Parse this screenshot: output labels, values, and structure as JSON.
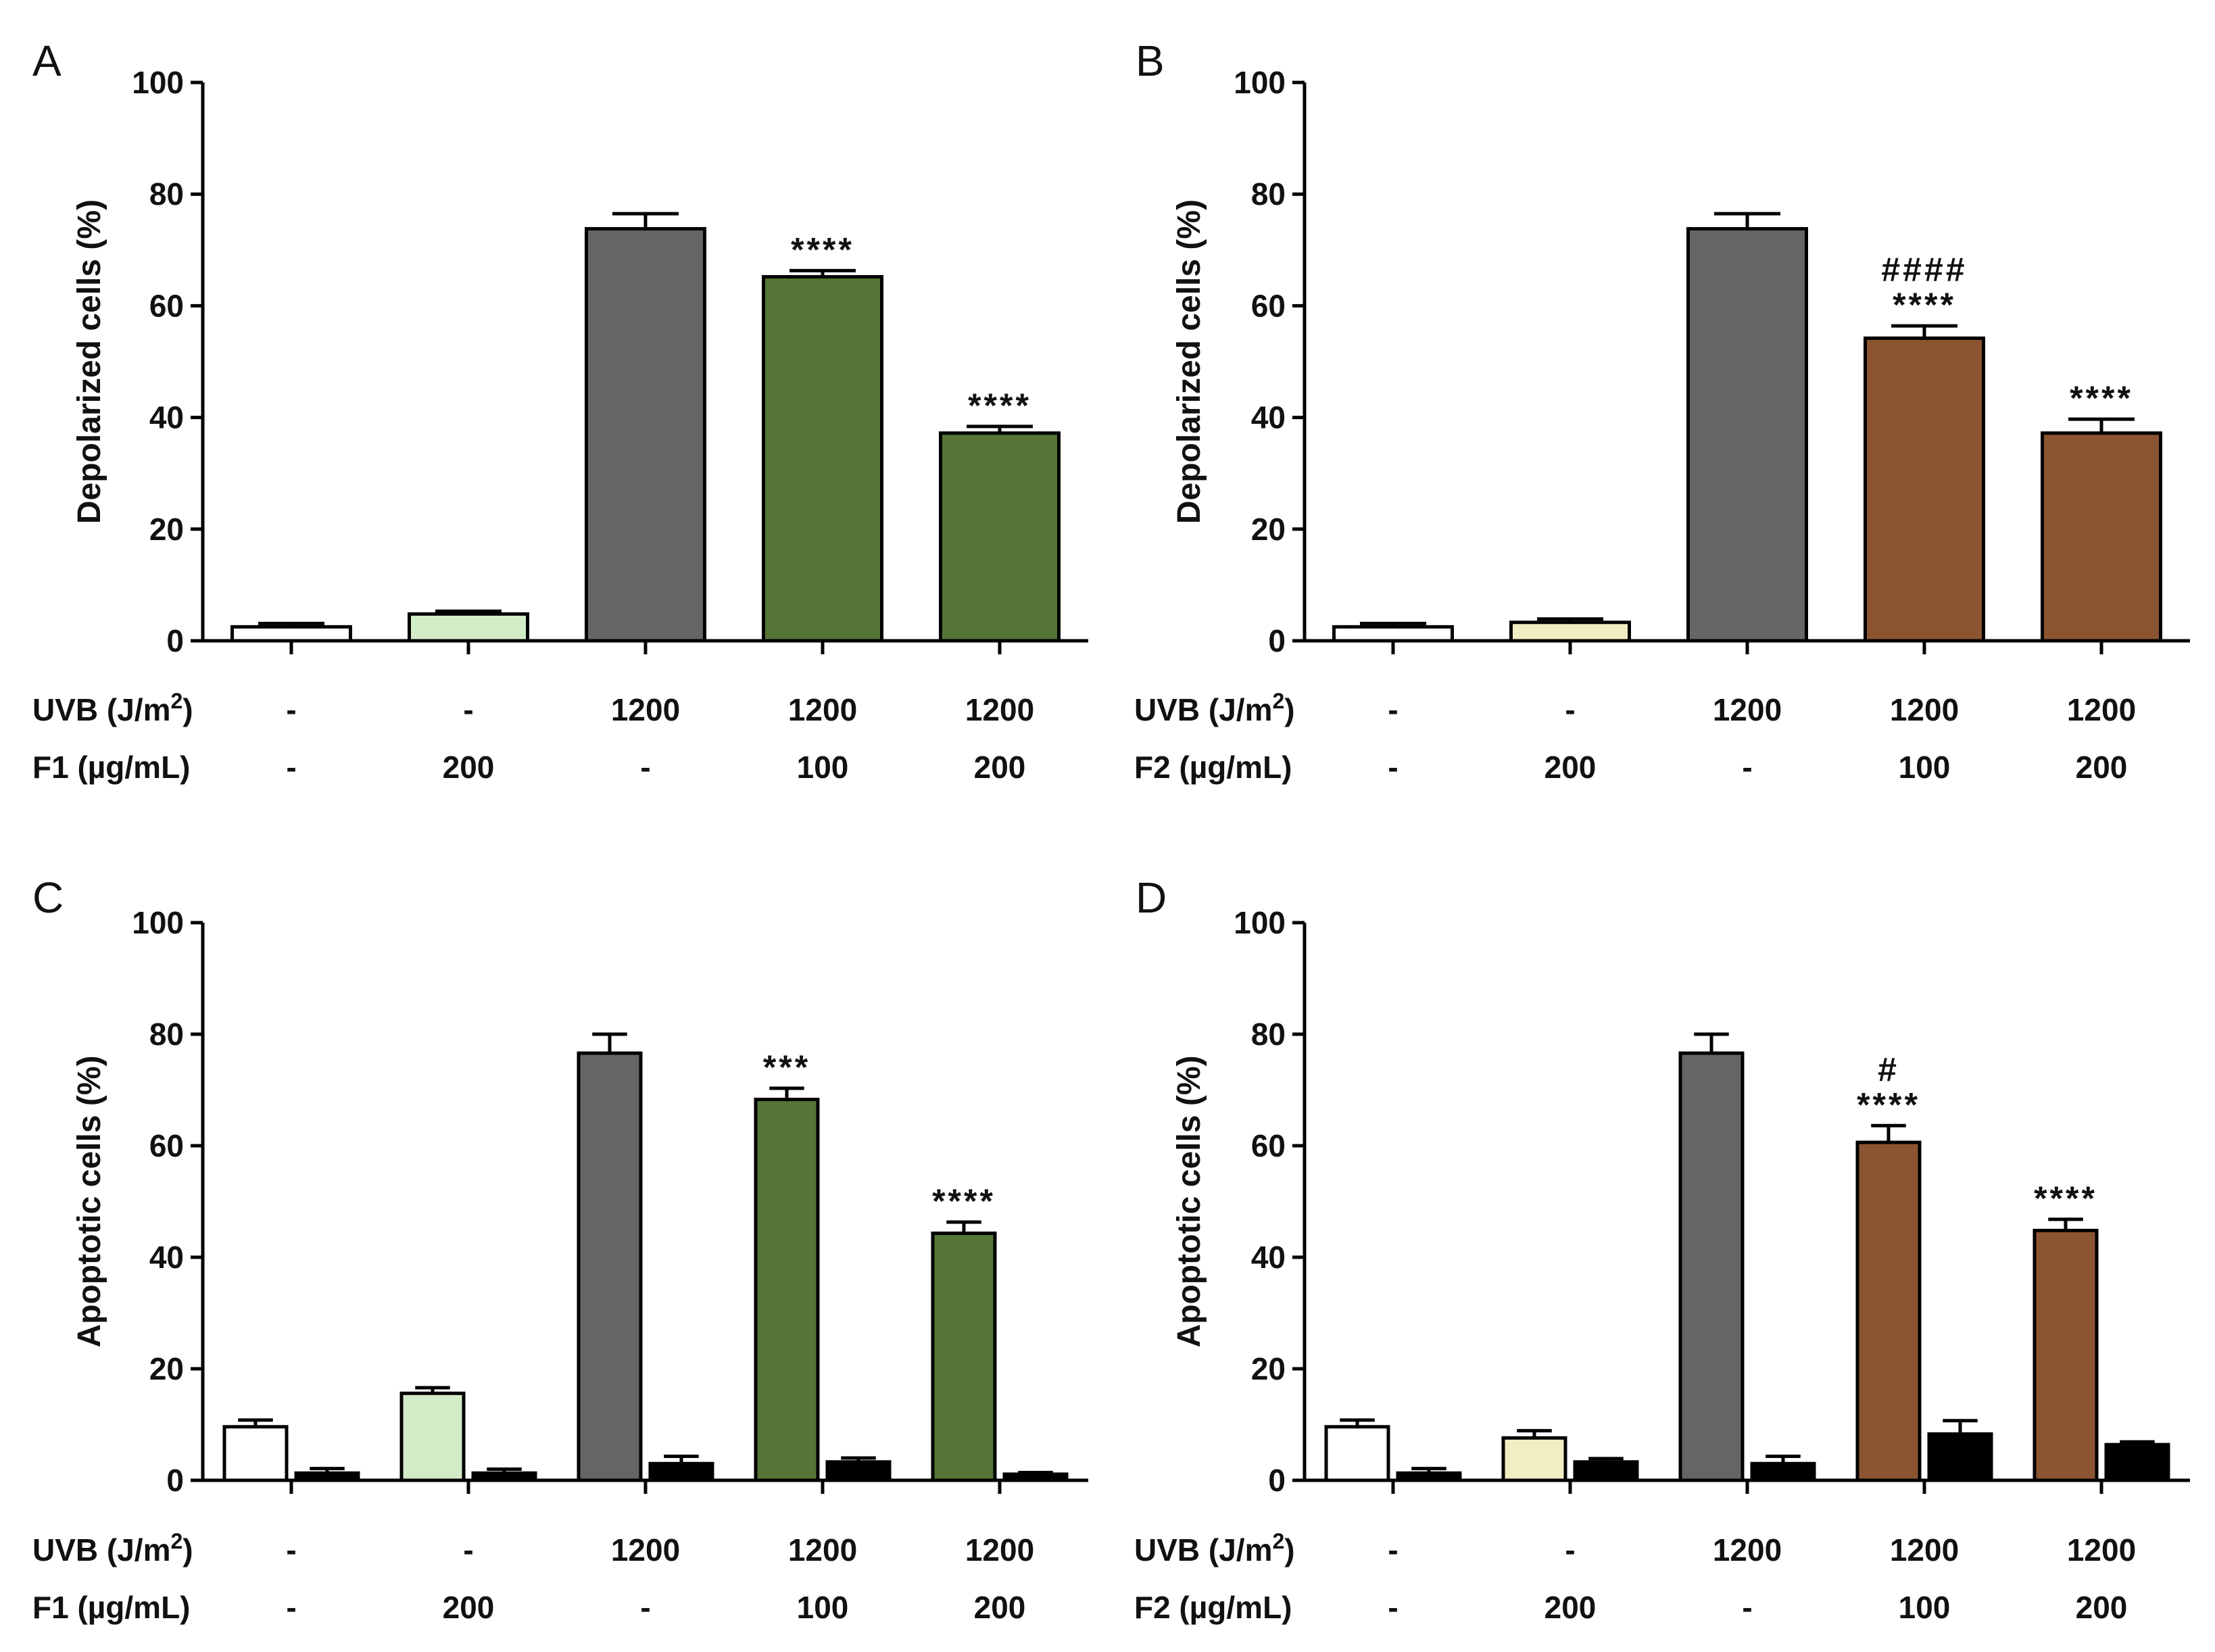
{
  "chart_data": [
    {
      "panel": "A",
      "type": "bar",
      "ylabel": "Depolarized cells (%)",
      "ylim": [
        0,
        100
      ],
      "yticks": [
        "0",
        "20",
        "40",
        "60",
        "80",
        "100"
      ],
      "groups": [
        {
          "uvb": "-",
          "extract": "-",
          "bars": [
            {
              "value": 2.5,
              "err": 0.6,
              "color": "#ffffff",
              "sig": []
            }
          ]
        },
        {
          "uvb": "-",
          "extract": "200",
          "bars": [
            {
              "value": 4.8,
              "err": 0.5,
              "color": "#d3ecc8",
              "sig": []
            }
          ]
        },
        {
          "uvb": "1200",
          "extract": "-",
          "bars": [
            {
              "value": 73.8,
              "err": 2.7,
              "color": "#656565",
              "sig": []
            }
          ]
        },
        {
          "uvb": "1200",
          "extract": "100",
          "bars": [
            {
              "value": 65.2,
              "err": 1.1,
              "color": "#557436",
              "sig": [
                "****"
              ]
            }
          ]
        },
        {
          "uvb": "1200",
          "extract": "200",
          "bars": [
            {
              "value": 37.2,
              "err": 1.2,
              "color": "#557436",
              "sig": [
                "****"
              ]
            }
          ]
        }
      ],
      "row_labels": {
        "uvb": "UVB (J/m",
        "uvb_sup": "2",
        "uvb_close": ")",
        "extract": "F1 (µg/mL)"
      }
    },
    {
      "panel": "B",
      "type": "bar",
      "ylabel": "Depolarized cells (%)",
      "ylim": [
        0,
        100
      ],
      "yticks": [
        "0",
        "20",
        "40",
        "60",
        "80",
        "100"
      ],
      "groups": [
        {
          "uvb": "-",
          "extract": "-",
          "bars": [
            {
              "value": 2.5,
              "err": 0.6,
              "color": "#ffffff",
              "sig": []
            }
          ]
        },
        {
          "uvb": "-",
          "extract": "200",
          "bars": [
            {
              "value": 3.3,
              "err": 0.6,
              "color": "#f2edc2",
              "sig": []
            }
          ]
        },
        {
          "uvb": "1200",
          "extract": "-",
          "bars": [
            {
              "value": 73.8,
              "err": 2.7,
              "color": "#656565",
              "sig": []
            }
          ]
        },
        {
          "uvb": "1200",
          "extract": "100",
          "bars": [
            {
              "value": 54.2,
              "err": 2.2,
              "color": "#8b5532",
              "sig": [
                "####",
                "****"
              ]
            }
          ]
        },
        {
          "uvb": "1200",
          "extract": "200",
          "bars": [
            {
              "value": 37.2,
              "err": 2.5,
              "color": "#8b5532",
              "sig": [
                "****"
              ]
            }
          ]
        }
      ],
      "row_labels": {
        "uvb": "UVB (J/m",
        "uvb_sup": "2",
        "uvb_close": ")",
        "extract": "F2 (µg/mL)"
      }
    },
    {
      "panel": "C",
      "type": "bar",
      "ylabel": "Apoptotic cells (%)",
      "ylim": [
        0,
        100
      ],
      "yticks": [
        "0",
        "20",
        "40",
        "60",
        "80",
        "100"
      ],
      "groups": [
        {
          "uvb": "-",
          "extract": "-",
          "bars": [
            {
              "value": 9.6,
              "err": 1.2,
              "color": "#ffffff",
              "sig": []
            },
            {
              "value": 1.3,
              "err": 0.8,
              "color": "#000000",
              "sig": []
            }
          ]
        },
        {
          "uvb": "-",
          "extract": "200",
          "bars": [
            {
              "value": 15.6,
              "err": 1.0,
              "color": "#d3ecc8",
              "sig": []
            },
            {
              "value": 1.3,
              "err": 0.7,
              "color": "#000000",
              "sig": []
            }
          ]
        },
        {
          "uvb": "1200",
          "extract": "-",
          "bars": [
            {
              "value": 76.6,
              "err": 3.4,
              "color": "#656565",
              "sig": []
            },
            {
              "value": 3.0,
              "err": 1.3,
              "color": "#000000",
              "sig": []
            }
          ]
        },
        {
          "uvb": "1200",
          "extract": "100",
          "bars": [
            {
              "value": 68.3,
              "err": 2.0,
              "color": "#557436",
              "sig": [
                "***"
              ]
            },
            {
              "value": 3.3,
              "err": 0.7,
              "color": "#000000",
              "sig": []
            }
          ]
        },
        {
          "uvb": "1200",
          "extract": "200",
          "bars": [
            {
              "value": 44.3,
              "err": 2.0,
              "color": "#557436",
              "sig": [
                "****"
              ]
            },
            {
              "value": 1.1,
              "err": 0.3,
              "color": "#000000",
              "sig": []
            }
          ]
        }
      ],
      "row_labels": {
        "uvb": "UVB (J/m",
        "uvb_sup": "2",
        "uvb_close": ")",
        "extract": "F1 (µg/mL)"
      }
    },
    {
      "panel": "D",
      "type": "bar",
      "ylabel": "Apoptotic cells (%)",
      "ylim": [
        0,
        100
      ],
      "yticks": [
        "0",
        "20",
        "40",
        "60",
        "80",
        "100"
      ],
      "groups": [
        {
          "uvb": "-",
          "extract": "-",
          "bars": [
            {
              "value": 9.6,
              "err": 1.2,
              "color": "#ffffff",
              "sig": []
            },
            {
              "value": 1.3,
              "err": 0.8,
              "color": "#000000",
              "sig": []
            }
          ]
        },
        {
          "uvb": "-",
          "extract": "200",
          "bars": [
            {
              "value": 7.6,
              "err": 1.3,
              "color": "#f2edc2",
              "sig": []
            },
            {
              "value": 3.3,
              "err": 0.6,
              "color": "#000000",
              "sig": []
            }
          ]
        },
        {
          "uvb": "1200",
          "extract": "-",
          "bars": [
            {
              "value": 76.6,
              "err": 3.4,
              "color": "#656565",
              "sig": []
            },
            {
              "value": 3.0,
              "err": 1.3,
              "color": "#000000",
              "sig": []
            }
          ]
        },
        {
          "uvb": "1200",
          "extract": "100",
          "bars": [
            {
              "value": 60.6,
              "err": 3.0,
              "color": "#8b5532",
              "sig": [
                "#",
                "****"
              ]
            },
            {
              "value": 8.3,
              "err": 2.4,
              "color": "#000000",
              "sig": []
            }
          ]
        },
        {
          "uvb": "1200",
          "extract": "200",
          "bars": [
            {
              "value": 44.8,
              "err": 2.0,
              "color": "#8b5532",
              "sig": [
                "****"
              ]
            },
            {
              "value": 6.4,
              "err": 0.5,
              "color": "#000000",
              "sig": []
            }
          ]
        }
      ],
      "row_labels": {
        "uvb": "UVB (J/m",
        "uvb_sup": "2",
        "uvb_close": ")",
        "extract": "F2 (µg/mL)"
      }
    }
  ]
}
